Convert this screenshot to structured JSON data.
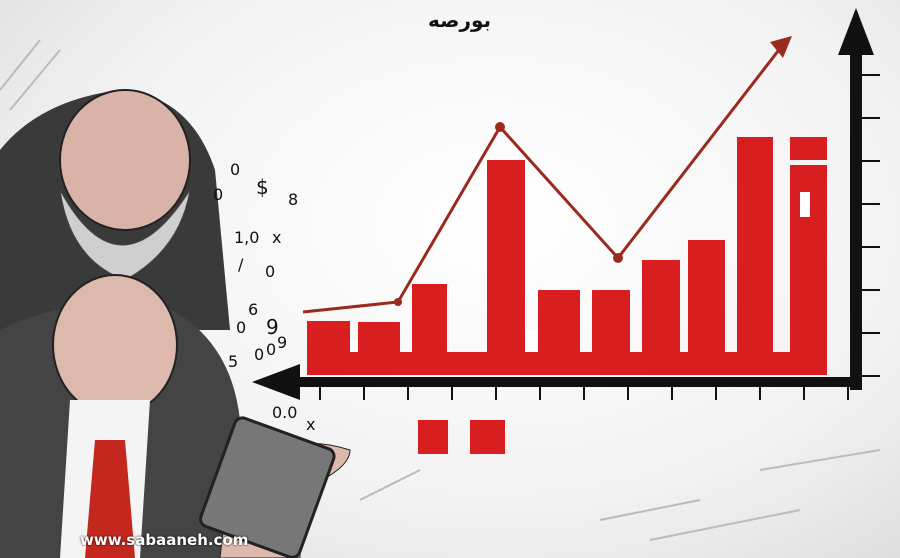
{
  "title": "بورصه",
  "watermark": "www.sabaaneh.com",
  "scattered_numbers": [
    "0",
    "0",
    "$",
    "8",
    "1,0",
    "x",
    "/",
    "0",
    "6",
    "0",
    "9",
    "5",
    "0",
    "0",
    "9",
    "0.0",
    "x"
  ],
  "colors": {
    "bars": "#d81e1e",
    "trend_line": "#9b2a1e",
    "axes": "#111111"
  }
}
